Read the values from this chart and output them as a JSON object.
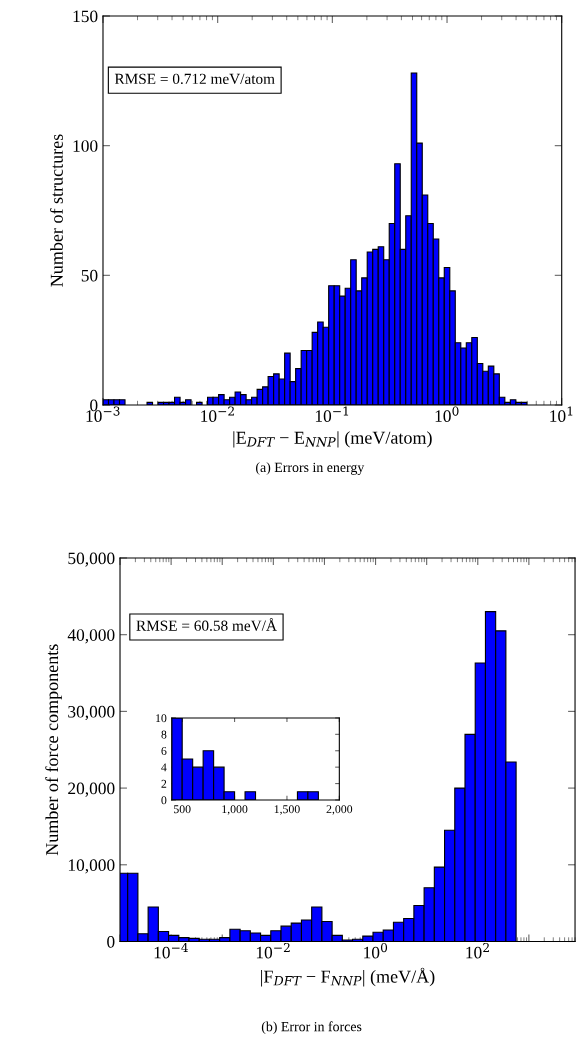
{
  "chart_data": [
    {
      "type": "histogram",
      "color": "#0000ff",
      "log": "x",
      "bins": [
        0.001,
        0.001117,
        0.001247,
        0.001393,
        0.001556,
        0.001738,
        0.001941,
        0.002168,
        0.002421,
        0.002704,
        0.00302,
        0.003373,
        0.003767,
        0.004207,
        0.004699,
        0.005248,
        0.005861,
        0.006546,
        0.007311,
        0.008166,
        0.00912,
        0.01019,
        0.01138,
        0.01271,
        0.01419,
        0.01585,
        0.0177,
        0.01977,
        0.02208,
        0.02466,
        0.02754,
        0.03076,
        0.03436,
        0.03837,
        0.04285,
        0.04786,
        0.05346,
        0.0597,
        0.06668,
        0.07447,
        0.08318,
        0.0929,
        0.1038,
        0.1159,
        0.1294,
        0.1445,
        0.1614,
        0.1803,
        0.2014,
        0.2249,
        0.2512,
        0.2805,
        0.3133,
        0.3499,
        0.3908,
        0.4365,
        0.4875,
        0.5445,
        0.6081,
        0.6792,
        0.7586,
        0.8472,
        0.9462,
        1.057,
        1.18,
        1.318,
        1.472,
        1.644,
        1.837,
        2.051,
        2.291,
        2.559,
        2.858,
        3.192,
        3.565,
        3.981,
        4.446,
        4.966
      ],
      "values": [
        2,
        2,
        2,
        2,
        0,
        0,
        0,
        0,
        1,
        0,
        1,
        1,
        1,
        3,
        1,
        2,
        0,
        1,
        0,
        3,
        3,
        4,
        2,
        3,
        5,
        4,
        2,
        3,
        6,
        7,
        11,
        12,
        10,
        20,
        9,
        14,
        21,
        21,
        28,
        32,
        30,
        46,
        46,
        42,
        45,
        56,
        44,
        49,
        59,
        60,
        61,
        56,
        70,
        93,
        60,
        73,
        128,
        101,
        81,
        70,
        64,
        49,
        53,
        44,
        24,
        22,
        24,
        26,
        16,
        13,
        15,
        12,
        3,
        1,
        2,
        1,
        1
      ],
      "xlim": [
        0.001,
        10
      ],
      "xticks": [
        {
          "value": 0.001,
          "label": "10$^{−3}$"
        },
        {
          "value": 0.01,
          "label": "10$^{−2}$"
        },
        {
          "value": 0.1,
          "label": "10$^{−1}$"
        },
        {
          "value": 1,
          "label": "10$^{0}$"
        },
        {
          "value": 10,
          "label": "10$^{1}$"
        }
      ],
      "ylim": [
        0,
        150
      ],
      "yticks": [
        0,
        50,
        100,
        150
      ],
      "xlabel": "|E$_{DFT}$ − E$_{NNP}$| (meV/atom)",
      "ylabel": "Number of structures",
      "annotations": [
        "RMSE = 0.712 meV/atom",
        "(a) Errors in energy"
      ]
    },
    {
      "type": "histogram",
      "color": "#0000ff",
      "log": "x",
      "bins": [
        8.913e-06,
        1.413e-05,
        2.239e-05,
        3.548e-05,
        5.623e-05,
        8.913e-05,
        0.0001413,
        0.0002239,
        0.0003548,
        0.0005623,
        0.0008913,
        0.001413,
        0.002239,
        0.003548,
        0.005623,
        0.008913,
        0.01413,
        0.02239,
        0.03548,
        0.05623,
        0.08913,
        0.1413,
        0.2239,
        0.3548,
        0.5623,
        0.8913,
        1.413,
        2.239,
        3.548,
        5.623,
        8.913,
        14.13,
        22.39,
        35.48,
        56.23,
        89.13,
        141.3,
        223.9,
        354.8,
        562.3,
        891.3,
        1413
      ],
      "values": [
        8900,
        8900,
        1000,
        4500,
        1300,
        800,
        500,
        400,
        300,
        300,
        500,
        1600,
        1400,
        1100,
        800,
        1400,
        2000,
        2400,
        2800,
        4500,
        2600,
        800,
        200,
        300,
        700,
        1200,
        1500,
        2500,
        3000,
        4700,
        7000,
        9700,
        14500,
        20000,
        27000,
        36300,
        43000,
        40500,
        23400,
        0,
        0
      ],
      "xlim": [
        1e-05,
        8000
      ],
      "xticks": [
        {
          "value": 1e-05,
          "label": null
        },
        {
          "value": 0.0001,
          "label": "10$^{−4}$"
        },
        {
          "value": 0.001,
          "label": null
        },
        {
          "value": 0.01,
          "label": "10$^{−2}$"
        },
        {
          "value": 0.1,
          "label": null
        },
        {
          "value": 1,
          "label": "10$^{0}$"
        },
        {
          "value": 10,
          "label": null
        },
        {
          "value": 100,
          "label": "10$^{2}$"
        },
        {
          "value": 1000,
          "label": null
        }
      ],
      "ylim": [
        0,
        50000
      ],
      "yticks": [
        0,
        {
          "value": 10000,
          "label": "10,000"
        },
        {
          "value": 20000,
          "label": "20,000"
        },
        {
          "value": 30000,
          "label": "30,000"
        },
        {
          "value": 40000,
          "label": "40,000"
        },
        {
          "value": 50000,
          "label": "50,000"
        }
      ],
      "xlabel": "|F$_{DFT}$ − F$_{NNP}$| (meV/Å)",
      "ylabel": "Number of force components",
      "annotations": [
        "RMSE = 60.58 meV/Å",
        "(b) Error in forces"
      ]
    },
    {
      "type": "histogram",
      "color": "#0000ff",
      "bins": [
        400,
        500,
        600,
        700,
        800,
        900,
        1000,
        1100,
        1200,
        1300,
        1400,
        1500,
        1600,
        1700,
        1800
      ],
      "values": [
        10,
        5,
        4,
        6,
        4,
        1,
        0,
        1,
        0,
        0,
        0,
        0,
        1,
        1
      ],
      "xlim": [
        400,
        2000
      ],
      "xticks": [
        {
          "value": 500,
          "label": "500"
        },
        {
          "value": 1000,
          "label": "1,000"
        },
        {
          "value": 1500,
          "label": "1,500"
        },
        {
          "value": 2000,
          "label": "2,000"
        }
      ],
      "ylim": [
        0,
        10
      ],
      "yticks": [
        0,
        2,
        4,
        6,
        8,
        10
      ]
    }
  ]
}
